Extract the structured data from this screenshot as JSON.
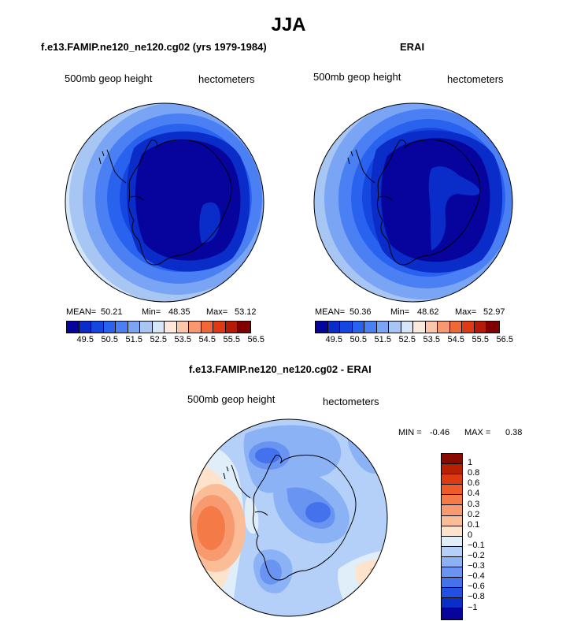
{
  "page_title": "JJA",
  "chart_data": [
    {
      "type": "heatmap",
      "projection": "south-polar-stereographic",
      "title": "f.e13.FAMIP.ne120_ne120.cg02 (yrs 1979-1984)",
      "left_label": "500mb geop height",
      "right_label": "hectometers",
      "stats": {
        "mean_label": "MEAN=",
        "mean": "50.21",
        "min_label": "Min=",
        "min": "48.35",
        "max_label": "Max=",
        "max": "53.12"
      },
      "colorbar": {
        "ticks": [
          "49.5",
          "50.5",
          "51.5",
          "52.5",
          "53.5",
          "54.5",
          "55.5",
          "56.5"
        ],
        "colors": [
          "#06049c",
          "#0a2cc8",
          "#1547e0",
          "#2a62f0",
          "#4a80f4",
          "#7aa4f4",
          "#a8c6f4",
          "#d4e6f8",
          "#fde8dc",
          "#fcc6a8",
          "#f89870",
          "#f06838",
          "#e03a14",
          "#b81a08",
          "#800000"
        ]
      }
    },
    {
      "type": "heatmap",
      "projection": "south-polar-stereographic",
      "title": "ERAI",
      "left_label": "500mb geop height",
      "right_label": "hectometers",
      "stats": {
        "mean_label": "MEAN=",
        "mean": "50.36",
        "min_label": "Min=",
        "min": "48.62",
        "max_label": "Max=",
        "max": "52.97"
      },
      "colorbar": {
        "ticks": [
          "49.5",
          "50.5",
          "51.5",
          "52.5",
          "53.5",
          "54.5",
          "55.5",
          "56.5"
        ],
        "colors": [
          "#06049c",
          "#0a2cc8",
          "#1547e0",
          "#2a62f0",
          "#4a80f4",
          "#7aa4f4",
          "#a8c6f4",
          "#d4e6f8",
          "#fde8dc",
          "#fcc6a8",
          "#f89870",
          "#f06838",
          "#e03a14",
          "#b81a08",
          "#800000"
        ]
      }
    },
    {
      "type": "heatmap",
      "projection": "south-polar-stereographic",
      "title": "f.e13.FAMIP.ne120_ne120.cg02 - ERAI",
      "left_label": "500mb geop height",
      "right_label": "hectometers",
      "stats": {
        "min_label": "MIN =",
        "min": "-0.46",
        "max_label": "MAX =",
        "max": "0.38"
      },
      "colorbar": {
        "ticks": [
          "1",
          "0.8",
          "0.6",
          "0.4",
          "0.3",
          "0.2",
          "0.1",
          "0",
          "−0.1",
          "−0.2",
          "−0.3",
          "−0.4",
          "−0.6",
          "−0.8",
          "−1"
        ],
        "colors": [
          "#8a0a00",
          "#b82000",
          "#dc3a10",
          "#f05a28",
          "#f47a48",
          "#f89a70",
          "#fbbc98",
          "#fde2cc",
          "#e0eefa",
          "#b4d0f8",
          "#8cb2f6",
          "#6a94f2",
          "#4472ec",
          "#2250e0",
          "#0a2ec8",
          "#06049c"
        ]
      }
    }
  ]
}
